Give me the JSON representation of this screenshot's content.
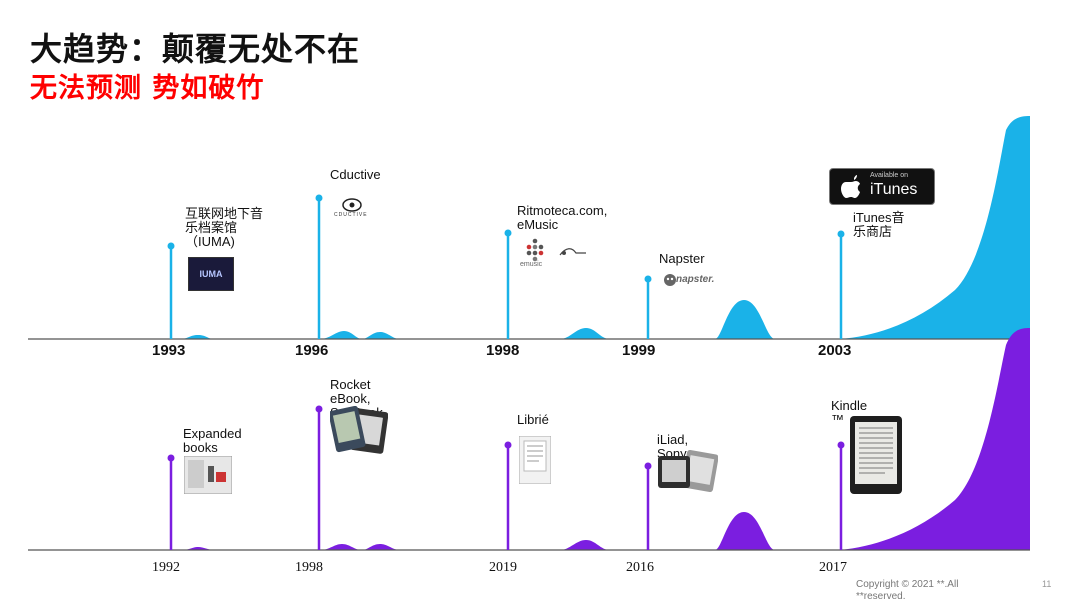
{
  "title": "大趋势：颠覆无处不在",
  "subtitle": "无法预测  势如破竹",
  "music_timeline": {
    "years": [
      "1993",
      "1996",
      "1998",
      "1999",
      "2003"
    ],
    "events": [
      {
        "label": "互联网地下音乐档案馆（IUMA)",
        "logo_text": "IUMA"
      },
      {
        "label": "Cductive",
        "logo_text": "CDUCTIVE"
      },
      {
        "label": "Ritmoteca.com, eMusic",
        "logo_text": "emusic"
      },
      {
        "label": "Napster",
        "logo_text": "napster."
      },
      {
        "label": "iTunes音乐商店",
        "logo_text": "iTunes",
        "logo_small": "Available on"
      }
    ],
    "color": "#1ab2e8"
  },
  "ebook_timeline": {
    "years": [
      "1992",
      "1998",
      "2019",
      "2016",
      "2017"
    ],
    "events": [
      {
        "label": "Expanded books"
      },
      {
        "label": "Rocket eBook, SoftBook"
      },
      {
        "label": "Librié"
      },
      {
        "label": "iLiad, Sony Reader"
      },
      {
        "label": "Kindle ™"
      }
    ],
    "color": "#7b1ee0"
  },
  "footer": {
    "copyright_line1": "Copyright © 2021 **.All",
    "copyright_line2": "**reserved.",
    "page_number": "11"
  }
}
